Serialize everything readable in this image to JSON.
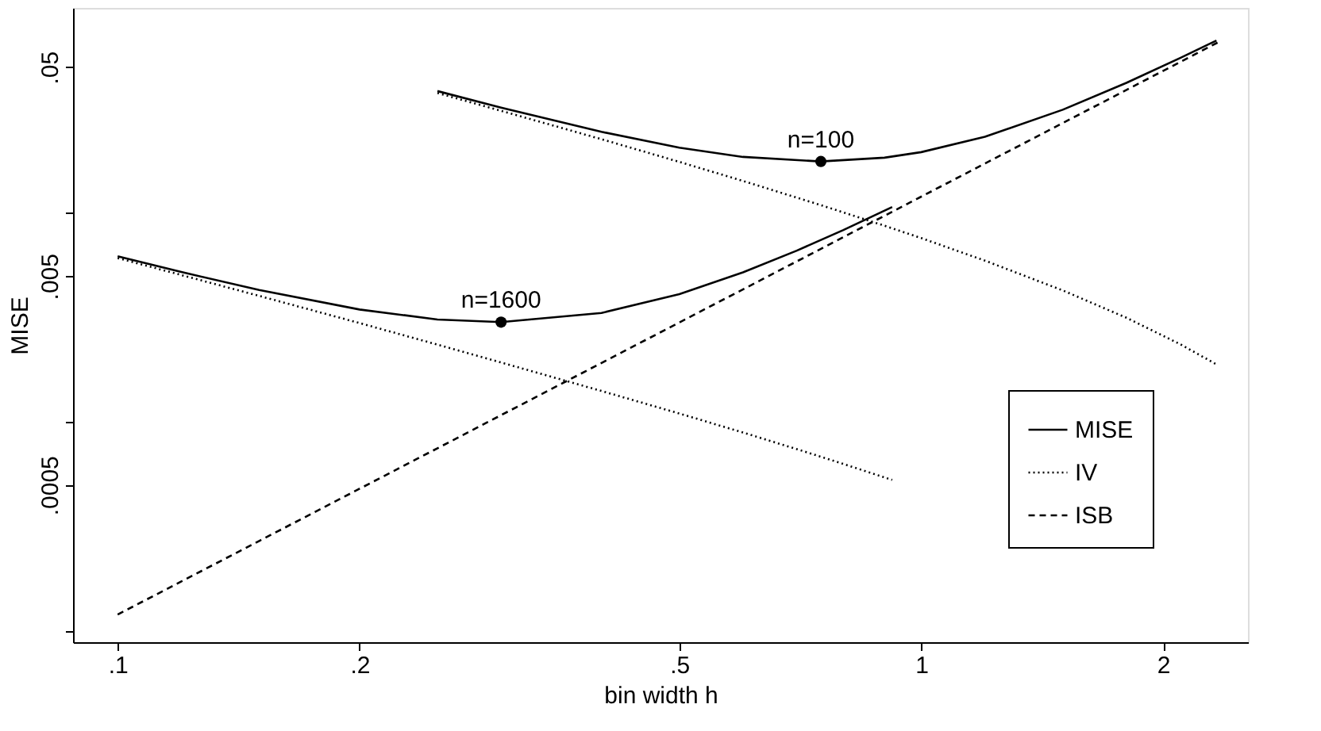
{
  "chart_data": {
    "type": "line",
    "xlabel": "bin width h",
    "ylabel": "MISE",
    "log": "xy",
    "grid": false,
    "legend": "bottom right",
    "xlim": [
      0.088,
      2.55
    ],
    "ylim": [
      8.85e-05,
      0.096
    ],
    "xticks": [
      {
        "value": 0.1,
        "label": ".1"
      },
      {
        "value": 0.2,
        "label": ".2"
      },
      {
        "value": 0.5,
        "label": ".5"
      },
      1,
      2
    ],
    "yticks": [
      {
        "value": 0.05,
        "label": ".05"
      },
      {
        "value": 0.01,
        "label": null
      },
      {
        "value": 0.005,
        "label": ".005"
      },
      {
        "value": 0.001,
        "label": null
      },
      {
        "value": 0.0005,
        "label": ".0005"
      },
      {
        "value": 0.0001,
        "label": null
      }
    ],
    "series": [
      {
        "name": "MISE",
        "color": "#000000",
        "line_style": "solid",
        "x": [
          0.1,
          0.12,
          0.15,
          0.2,
          0.25,
          0.3,
          0.4,
          0.5,
          0.6,
          0.7,
          0.8,
          0.92
        ],
        "values": [
          0.00622,
          0.00523,
          0.00429,
          0.00346,
          0.0031,
          0.00301,
          0.00333,
          0.0041,
          0.00521,
          0.00662,
          0.00831,
          0.0107
        ]
      },
      {
        "name": "IV",
        "color": "#000000",
        "line_style": "dotted",
        "x": [
          0.1,
          0.12,
          0.15,
          0.2,
          0.25,
          0.3,
          0.4,
          0.5,
          0.6,
          0.7,
          0.8,
          0.92
        ],
        "values": [
          0.0061,
          0.00506,
          0.00402,
          0.00298,
          0.00235,
          0.00193,
          0.00141,
          0.0011,
          0.000892,
          0.000743,
          0.000631,
          0.000529
        ]
      },
      {
        "name": "ISB",
        "color": "#000000",
        "line_style": "dashed",
        "x": [
          0.1,
          0.15,
          0.2,
          0.3,
          0.5,
          0.7,
          1,
          1.5,
          2,
          2.36
        ],
        "values": [
          0.00012,
          0.00027,
          0.00048,
          0.00108,
          0.003,
          0.00588,
          0.012,
          0.027,
          0.048,
          0.0668
        ]
      },
      {
        "color": "#000000",
        "line_style": "solid",
        "x": [
          0.25,
          0.3,
          0.4,
          0.5,
          0.6,
          0.75,
          0.9,
          1,
          1.2,
          1.5,
          1.8,
          2.1,
          2.33
        ],
        "values": [
          0.0384,
          0.032,
          0.0245,
          0.0206,
          0.01859,
          0.01768,
          0.01843,
          0.0196,
          0.02321,
          0.03127,
          0.04204,
          0.05528,
          0.06704
        ]
      },
      {
        "color": "#000000",
        "line_style": "dotted",
        "x": [
          0.25,
          0.3,
          0.4,
          0.5,
          0.6,
          0.75,
          0.9,
          1,
          1.2,
          1.5,
          1.8,
          2.1,
          2.33
        ],
        "values": [
          0.0376,
          0.0309,
          0.0226,
          0.0176,
          0.01427,
          0.01093,
          0.00871,
          0.0076,
          0.00593,
          0.00427,
          0.00316,
          0.00236,
          0.00189
        ]
      },
      {
        "type": "scatter",
        "color": "#000000",
        "marker": "circle",
        "x": [
          0.3,
          0.75
        ],
        "values": [
          0.00301,
          0.01768
        ]
      }
    ],
    "annotations": [
      {
        "text": "n=1600",
        "x": 0.3,
        "y": 0.00301
      },
      {
        "text": "n=100",
        "x": 0.75,
        "y": 0.01768
      }
    ]
  }
}
